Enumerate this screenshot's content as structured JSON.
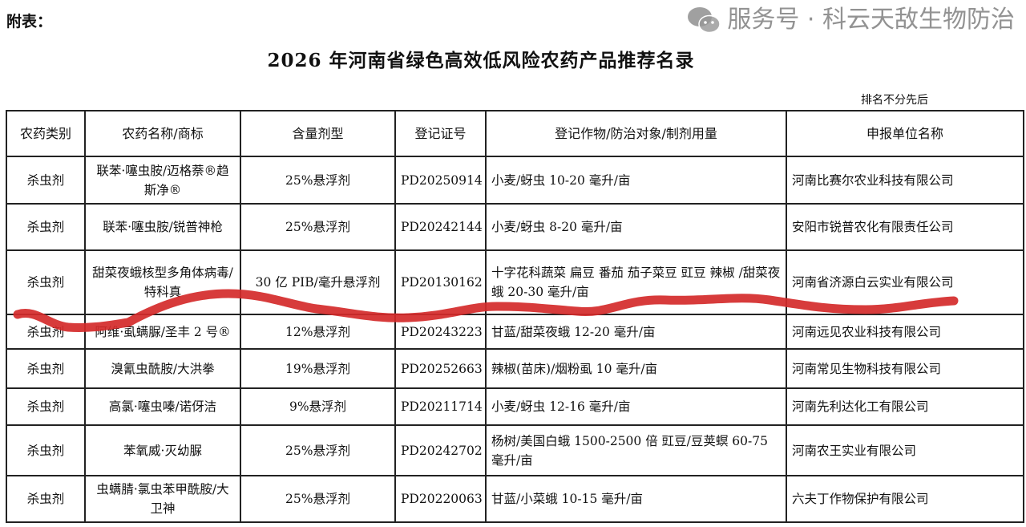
{
  "attachment_label": "附表：",
  "title": "2026 年河南省绿色高效低风险农药产品推荐名录",
  "note": "排名不分先后",
  "columns": [
    "农药类别",
    "农药名称/商标",
    "含量剂型",
    "登记证号",
    "登记作物/防治对象/制剂用量",
    "申报单位名称"
  ],
  "rows": [
    {
      "category": "杀虫剂",
      "name": "联苯·噻虫胺/迈格萘®趋斯净®",
      "content": "25%悬浮剂",
      "reg": "PD20250914",
      "usage": "小麦/蚜虫 10-20 毫升/亩",
      "company": "河南比赛尔农业科技有限公司"
    },
    {
      "category": "杀虫剂",
      "name": "联苯·噻虫胺/锐普神枪",
      "content": "25%悬浮剂",
      "reg": "PD20242144",
      "usage": "小麦/蚜虫 8-20 毫升/亩",
      "company": "安阳市锐普农化有限责任公司"
    },
    {
      "category": "杀虫剂",
      "name": "甜菜夜蛾核型多角体病毒/特科真",
      "content": "30 亿 PIB/毫升悬浮剂",
      "reg": "PD20130162",
      "usage": "十字花科蔬菜 扁豆 番茄 茄子菜豆 豇豆 辣椒 /甜菜夜蛾 20-30 毫升/亩",
      "company": "河南省济源白云实业有限公司"
    },
    {
      "category": "杀虫剂",
      "name": "阿维·虱螨脲/圣丰 2 号®",
      "content": "12%悬浮剂",
      "reg": "PD20243223",
      "usage": "甘蓝/甜菜夜蛾 12-20 毫升/亩",
      "company": "河南远见农业科技有限公司"
    },
    {
      "category": "杀虫剂",
      "name": "溴氰虫酰胺/大洪拳",
      "content": "19%悬浮剂",
      "reg": "PD20252663",
      "usage": "辣椒(苗床)/烟粉虱 10 毫升/亩",
      "company": "河南常见生物科技有限公司"
    },
    {
      "category": "杀虫剂",
      "name": "高氯·噻虫嗪/诺伢洁",
      "content": "9%悬浮剂",
      "reg": "PD20211714",
      "usage": "小麦/蚜虫 12-16 毫升/亩",
      "company": "河南先利达化工有限公司"
    },
    {
      "category": "杀虫剂",
      "name": "苯氧威·灭幼脲",
      "content": "25%悬浮剂",
      "reg": "PD20242702",
      "usage": "杨树/美国白蛾 1500-2500 倍 豇豆/豆荚螟 60-75 毫升/亩",
      "company": "河南农王实业有限公司"
    },
    {
      "category": "杀虫剂",
      "name": "虫螨腈·氯虫苯甲酰胺/大卫神",
      "content": "25%悬浮剂",
      "reg": "PD20220063",
      "usage": "甘蓝/小菜蛾 10-15 毫升/亩",
      "company": "六夫丁作物保护有限公司"
    }
  ],
  "watermark": "服务号 · 科云天敌生物防治",
  "colors": {
    "pen_stroke": "#d42a2a",
    "watermark": "#8a8a8a"
  }
}
